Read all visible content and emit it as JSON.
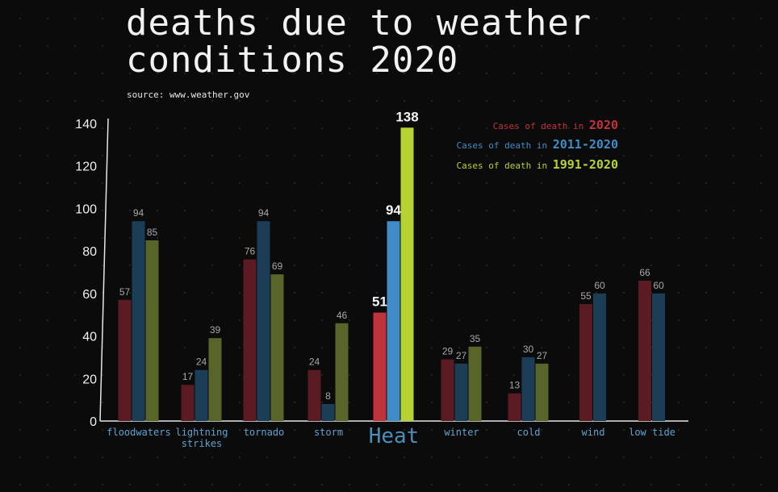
{
  "title_line1": "deaths due to weather",
  "title_line2": "conditions 2020",
  "source": "source: www.weather.gov",
  "chart_data": {
    "type": "bar",
    "title": "deaths due to weather conditions 2020",
    "categories": [
      "floodwaters",
      "lightning\nstrikes",
      "tornado",
      "storm",
      "Heat",
      "winter",
      "cold",
      "wind",
      "low tide"
    ],
    "highlight_category": "Heat",
    "ylim": [
      0,
      140
    ],
    "yticks": [
      0,
      20,
      40,
      60,
      80,
      100,
      120,
      140
    ],
    "grid": false,
    "legend_position": "top-right",
    "series": [
      {
        "name": "2020",
        "legend_prefix": "Cases of death in",
        "color": "#c1333b",
        "values": [
          57,
          17,
          76,
          24,
          51,
          29,
          13,
          55,
          66
        ]
      },
      {
        "name": "2011-2020",
        "legend_prefix": "Cases of death in",
        "color": "#3f8cc6",
        "values": [
          94,
          24,
          94,
          8,
          94,
          27,
          30,
          60,
          60
        ]
      },
      {
        "name": "1991-2020",
        "legend_prefix": "Cases of death in",
        "color": "#b7d333",
        "values": [
          85,
          39,
          69,
          46,
          138,
          35,
          27,
          null,
          null
        ]
      }
    ]
  }
}
